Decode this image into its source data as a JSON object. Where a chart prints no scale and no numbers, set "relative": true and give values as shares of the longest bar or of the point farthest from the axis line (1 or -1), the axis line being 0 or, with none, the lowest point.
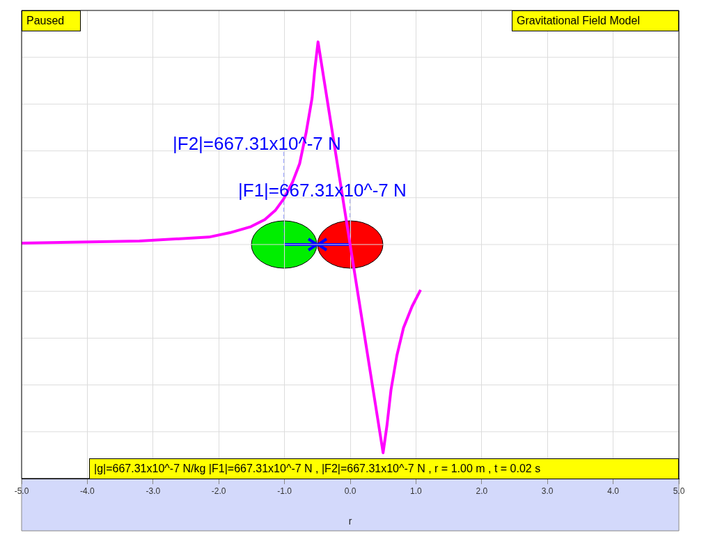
{
  "chart_data": {
    "type": "line",
    "title": "Gravitational Field Model",
    "xlabel": "r",
    "relative": true,
    "annotations": [
      "Paused",
      "|g|=667.31x10^-7 N/kg |F1|=667.31x10^-7 N , |F2|=667.31x10^-7 N , r = 1.00 m , t = 0.02 s",
      "|F2|=667.31x10^-7 N",
      "|F1|=667.31x10^-7 N"
    ],
    "x": [
      -5,
      -4.26,
      -3.21,
      -2.15,
      -1.83,
      -1.51,
      -1.3,
      -1.14,
      -1.01,
      -0.88,
      -0.77,
      -0.67,
      -0.58,
      -0.54,
      -0.49,
      0.5,
      0.56,
      0.62,
      0.71,
      0.81,
      0.94,
      1.07
    ],
    "series": [
      {
        "color": "#ff00ff",
        "values": [
          0.539,
          0.541,
          0.544,
          0.553,
          0.563,
          0.577,
          0.593,
          0.614,
          0.641,
          0.678,
          0.721,
          0.793,
          0.872,
          0.936,
          1,
          0.059,
          0.123,
          0.203,
          0.282,
          0.345,
          0.394,
          0.432
        ]
      }
    ],
    "xlim": [
      -5,
      5
    ],
    "xticks": [
      {
        "value": -5,
        "label": "-5.0"
      },
      {
        "value": -4,
        "label": "-4.0"
      },
      {
        "value": -3,
        "label": "-3.0"
      },
      {
        "value": -2,
        "label": "-2.0"
      },
      {
        "value": -1,
        "label": "-1.0"
      },
      {
        "value": 0,
        "label": "0.0"
      },
      {
        "value": 1,
        "label": "1.0"
      },
      {
        "value": 2,
        "label": "2.0"
      },
      {
        "value": 3,
        "label": "3.0"
      },
      {
        "value": 4,
        "label": "4.0"
      },
      {
        "value": 5,
        "label": "5.0"
      }
    ],
    "grid": true,
    "legend": false,
    "marker": "none",
    "line_style": "solid",
    "tick_labels": "x"
  }
}
